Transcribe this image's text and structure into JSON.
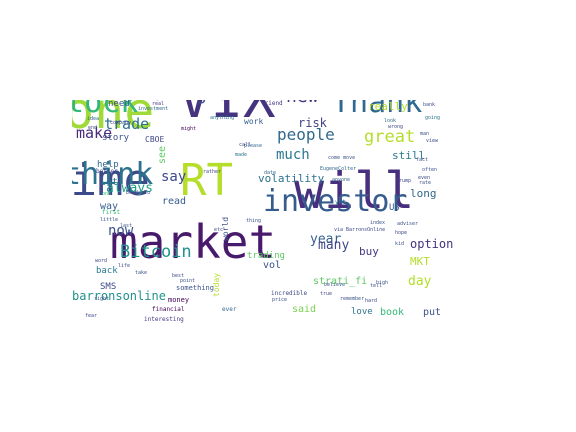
{
  "palette": {
    "dark_purple": "#440154",
    "indigo": "#3b528b",
    "teal": "#21918c",
    "green": "#5ec962",
    "yellow_green": "#b5de2b"
  },
  "words": [
    {
      "text": "market",
      "color": "#481a6c",
      "size": 46,
      "rotate": 0
    },
    {
      "text": "will",
      "color": "#472f7d",
      "size": 50,
      "rotate": 0
    },
    {
      "text": "VIX",
      "color": "#46337f",
      "size": 54,
      "rotate": 0
    },
    {
      "text": "one",
      "color": "#a0da39",
      "size": 50,
      "rotate": 0
    },
    {
      "text": "time",
      "color": "#3e4989",
      "size": 44,
      "rotate": 0
    },
    {
      "text": "RT",
      "color": "#b5de2b",
      "size": 44,
      "rotate": 0
    },
    {
      "text": "stock",
      "color": "#35b779",
      "size": 30,
      "rotate": 0
    },
    {
      "text": "Thank",
      "color": "#31688e",
      "size": 30,
      "rotate": 0
    },
    {
      "text": "think",
      "color": "#2c728e",
      "size": 30,
      "rotate": 0
    },
    {
      "text": "investor",
      "color": "#365c8d",
      "size": 30,
      "rotate": 0
    },
    {
      "text": "know",
      "color": "#414487",
      "size": 30,
      "rotate": -90
    },
    {
      "text": "maxnrgmax",
      "color": "#3b528b",
      "size": 18,
      "rotate": 0
    },
    {
      "text": "new",
      "color": "#443983",
      "size": 18,
      "rotate": 0
    },
    {
      "text": "people",
      "color": "#31688e",
      "size": 16,
      "rotate": 0
    },
    {
      "text": "great",
      "color": "#b5de2b",
      "size": 17,
      "rotate": 0
    },
    {
      "text": "Bitcoin",
      "color": "#21918c",
      "size": 17,
      "rotate": 0
    },
    {
      "text": "make",
      "color": "#472a7a",
      "size": 15,
      "rotate": 0
    },
    {
      "text": "trade",
      "color": "#2c728e",
      "size": 15,
      "rotate": 0
    },
    {
      "text": "say",
      "color": "#3e4989",
      "size": 14,
      "rotate": 0
    },
    {
      "text": "much",
      "color": "#2a788e",
      "size": 14,
      "rotate": 0
    },
    {
      "text": "now",
      "color": "#3b528b",
      "size": 14,
      "rotate": 0
    },
    {
      "text": "good",
      "color": "#7ad151",
      "size": 14,
      "rotate": -90
    },
    {
      "text": "always",
      "color": "#1f9e89",
      "size": 13,
      "rotate": 0
    },
    {
      "text": "year",
      "color": "#355f8d",
      "size": 13,
      "rotate": 0
    },
    {
      "text": "many",
      "color": "#3e4989",
      "size": 13,
      "rotate": 0
    },
    {
      "text": "day",
      "color": "#b5de2b",
      "size": 13,
      "rotate": 0
    },
    {
      "text": "option",
      "color": "#46337f",
      "size": 12,
      "rotate": 0
    },
    {
      "text": "barronsonline",
      "color": "#21918c",
      "size": 12,
      "rotate": 0
    },
    {
      "text": "volatility",
      "color": "#2c728e",
      "size": 11,
      "rotate": 0
    },
    {
      "text": "risk",
      "color": "#414487",
      "size": 12,
      "rotate": 0
    },
    {
      "text": "really",
      "color": "#b5de2b",
      "size": 11,
      "rotate": 0
    },
    {
      "text": "still",
      "color": "#2a788e",
      "size": 11,
      "rotate": 0
    },
    {
      "text": "long",
      "color": "#31688e",
      "size": 11,
      "rotate": 0
    },
    {
      "text": "MKT",
      "color": "#b5de2b",
      "size": 11,
      "rotate": 0
    },
    {
      "text": "buy",
      "color": "#443983",
      "size": 11,
      "rotate": 0
    },
    {
      "text": "book",
      "color": "#35b779",
      "size": 10,
      "rotate": 0
    },
    {
      "text": "put",
      "color": "#3b528b",
      "size": 10,
      "rotate": 0
    },
    {
      "text": "love",
      "color": "#2c728e",
      "size": 9,
      "rotate": 0
    },
    {
      "text": "said",
      "color": "#7ad151",
      "size": 10,
      "rotate": 0
    },
    {
      "text": "strati_fi",
      "color": "#5ec962",
      "size": 10,
      "rotate": 0
    },
    {
      "text": "trading",
      "color": "#5ec962",
      "size": 9,
      "rotate": 0
    },
    {
      "text": "vol",
      "color": "#3b528b",
      "size": 10,
      "rotate": 0
    },
    {
      "text": "read",
      "color": "#365c8d",
      "size": 10,
      "rotate": 0
    },
    {
      "text": "lot",
      "color": "#2c728e",
      "size": 10,
      "rotate": 0
    },
    {
      "text": "way",
      "color": "#355f8d",
      "size": 10,
      "rotate": 0
    },
    {
      "text": "help",
      "color": "#31688e",
      "size": 9,
      "rotate": 0
    },
    {
      "text": "back",
      "color": "#2a788e",
      "size": 9,
      "rotate": 0
    },
    {
      "text": "SMS",
      "color": "#3e4989",
      "size": 9,
      "rotate": 0
    },
    {
      "text": "story",
      "color": "#3b528b",
      "size": 9,
      "rotate": 0
    },
    {
      "text": "CBOE",
      "color": "#3e4989",
      "size": 8,
      "rotate": 0
    },
    {
      "text": "need",
      "color": "#3b528b",
      "size": 9,
      "rotate": 0
    },
    {
      "text": "see",
      "color": "#5ec962",
      "size": 10,
      "rotate": -90
    },
    {
      "text": "work",
      "color": "#355f8d",
      "size": 8,
      "rotate": 0
    },
    {
      "text": "something",
      "color": "#3b528b",
      "size": 7,
      "rotate": 0
    },
    {
      "text": "money",
      "color": "#440154",
      "size": 7,
      "rotate": 0
    },
    {
      "text": "world",
      "color": "#3b528b",
      "size": 8,
      "rotate": -90
    },
    {
      "text": "US",
      "color": "#365c8d",
      "size": 9,
      "rotate": 0
    },
    {
      "text": "today",
      "color": "#b5de2b",
      "size": 8,
      "rotate": -90
    },
    {
      "text": "incredible",
      "color": "#3e4989",
      "size": 6,
      "rotate": 0
    },
    {
      "text": "friend",
      "color": "#46337f",
      "size": 6,
      "rotate": 0
    },
    {
      "text": "interesting",
      "color": "#443983",
      "size": 6,
      "rotate": 0
    },
    {
      "text": "financial",
      "color": "#440154",
      "size": 6,
      "rotate": 0
    },
    {
      "text": "investment",
      "color": "#31688e",
      "size": 5,
      "rotate": 0
    },
    {
      "text": "better",
      "color": "#3e4989",
      "size": 6,
      "rotate": 0
    },
    {
      "text": "first",
      "color": "#35b779",
      "size": 6,
      "rotate": 0
    },
    {
      "text": "yet",
      "color": "#31688e",
      "size": 6,
      "rotate": 0
    },
    {
      "text": "ever",
      "color": "#31688e",
      "size": 6,
      "rotate": 0
    },
    {
      "text": "price",
      "color": "#3b528b",
      "size": 5,
      "rotate": 0
    },
    {
      "text": "rather",
      "color": "#3e4989",
      "size": 5,
      "rotate": 0
    },
    {
      "text": "might",
      "color": "#440154",
      "size": 5,
      "rotate": 0
    },
    {
      "text": "thing",
      "color": "#3b528b",
      "size": 5,
      "rotate": 0
    },
    {
      "text": "anything",
      "color": "#2c728e",
      "size": 5,
      "rotate": 0
    },
    {
      "text": "anyone",
      "color": "#31688e",
      "size": 5,
      "rotate": 0
    },
    {
      "text": "call",
      "color": "#414487",
      "size": 5,
      "rotate": 0
    },
    {
      "text": "made",
      "color": "#2c728e",
      "size": 5,
      "rotate": 0
    },
    {
      "text": "date",
      "color": "#31688e",
      "size": 5,
      "rotate": 0
    },
    {
      "text": "please",
      "color": "#31688e",
      "size": 5,
      "rotate": 0
    },
    {
      "text": "company",
      "color": "#3e4989",
      "size": 5,
      "rotate": 0
    },
    {
      "text": "real",
      "color": "#443983",
      "size": 5,
      "rotate": 0
    },
    {
      "text": "idea",
      "color": "#355f8d",
      "size": 5,
      "rotate": 0
    },
    {
      "text": "bank",
      "color": "#3b528b",
      "size": 5,
      "rotate": 0
    },
    {
      "text": "going",
      "color": "#2c728e",
      "size": 5,
      "rotate": 0
    },
    {
      "text": "look",
      "color": "#31688e",
      "size": 5,
      "rotate": 0
    },
    {
      "text": "fact",
      "color": "#3b528b",
      "size": 5,
      "rotate": 0
    },
    {
      "text": "even",
      "color": "#3e4989",
      "size": 5,
      "rotate": 0
    },
    {
      "text": "rate",
      "color": "#3b528b",
      "size": 5,
      "rotate": 0
    },
    {
      "text": "Trump",
      "color": "#3e4989",
      "size": 5,
      "rotate": 0
    },
    {
      "text": "adviser",
      "color": "#3b528b",
      "size": 5,
      "rotate": 0
    },
    {
      "text": "via BarronsOnline",
      "color": "#3e4989",
      "size": 5,
      "rotate": 0
    },
    {
      "text": "EugeneColter",
      "color": "#31688e",
      "size": 5,
      "rotate": 0
    },
    {
      "text": "come move",
      "color": "#3b528b",
      "size": 5,
      "rotate": 0
    },
    {
      "text": "best",
      "color": "#3e4989",
      "size": 5,
      "rotate": 0
    },
    {
      "text": "point",
      "color": "#3b528b",
      "size": 5,
      "rotate": 0
    },
    {
      "text": "etc",
      "color": "#3b528b",
      "size": 5,
      "rotate": 0
    },
    {
      "text": "believe",
      "color": "#3b528b",
      "size": 5,
      "rotate": 0
    },
    {
      "text": "true",
      "color": "#3e4989",
      "size": 5,
      "rotate": 0
    },
    {
      "text": "remember",
      "color": "#3b528b",
      "size": 5,
      "rotate": 0
    },
    {
      "text": "hard",
      "color": "#3e4989",
      "size": 5,
      "rotate": 0
    },
    {
      "text": "tell",
      "color": "#3b528b",
      "size": 5,
      "rotate": 0
    },
    {
      "text": "high",
      "color": "#3b528b",
      "size": 5,
      "rotate": 0
    },
    {
      "text": "word",
      "color": "#3e4989",
      "size": 5,
      "rotate": 0
    },
    {
      "text": "right",
      "color": "#3b528b",
      "size": 5,
      "rotate": 0
    },
    {
      "text": "fear",
      "color": "#3e4989",
      "size": 5,
      "rotate": 0
    },
    {
      "text": "take",
      "color": "#3b528b",
      "size": 5,
      "rotate": 0
    },
    {
      "text": "wrong",
      "color": "#3e4989",
      "size": 5,
      "rotate": 0
    },
    {
      "text": "little",
      "color": "#3b528b",
      "size": 5,
      "rotate": 0
    },
    {
      "text": "man",
      "color": "#3b528b",
      "size": 5,
      "rotate": 0
    },
    {
      "text": "view",
      "color": "#3e4989",
      "size": 5,
      "rotate": 0
    },
    {
      "text": "often",
      "color": "#3b528b",
      "size": 5,
      "rotate": 0
    },
    {
      "text": "one",
      "color": "#35b779",
      "size": 5,
      "rotate": 0
    },
    {
      "text": "last",
      "color": "#3b528b",
      "size": 5,
      "rotate": 0
    },
    {
      "text": "life",
      "color": "#3e4989",
      "size": 5,
      "rotate": 0
    },
    {
      "text": "index",
      "color": "#3b528b",
      "size": 5,
      "rotate": 0
    },
    {
      "text": "hope",
      "color": "#3e4989",
      "size": 5,
      "rotate": 0
    },
    {
      "text": "kid",
      "color": "#3b528b",
      "size": 5,
      "rotate": 0
    },
    {
      "text": "end",
      "color": "#3e4989",
      "size": 5,
      "rotate": 0
    },
    {
      "text": "DondorVu",
      "color": "#3b528b",
      "size": 5,
      "rotate": 0
    }
  ]
}
